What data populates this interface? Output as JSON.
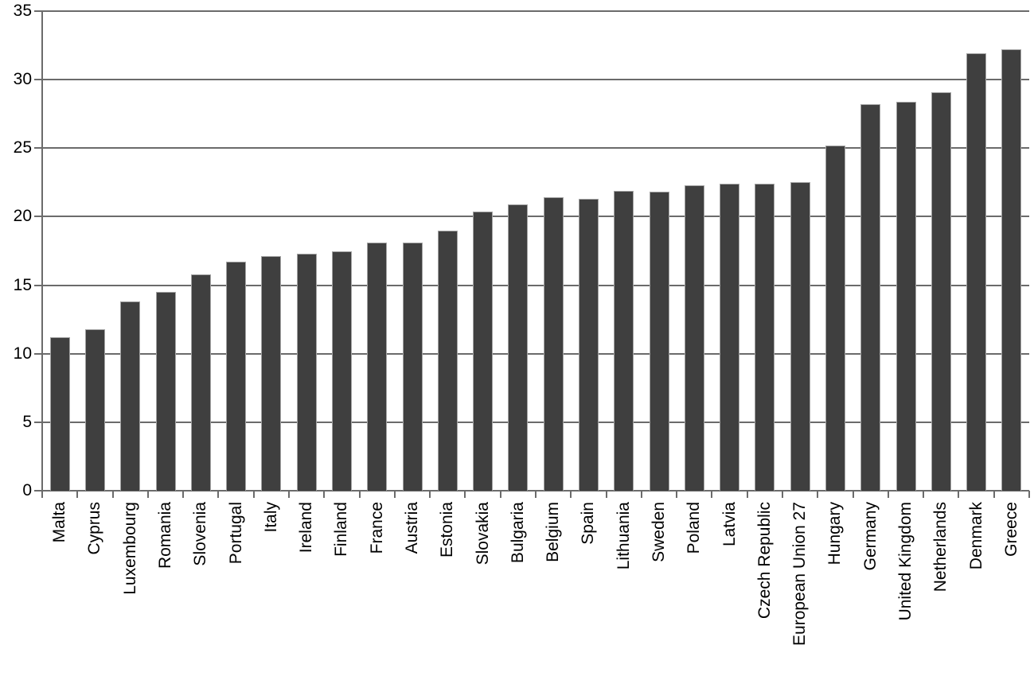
{
  "chart_data": {
    "type": "bar",
    "title": "",
    "xlabel": "",
    "ylabel": "",
    "categories": [
      "Malta",
      "Cyprus",
      "Luxembourg",
      "Romania",
      "Slovenia",
      "Portugal",
      "Italy",
      "Ireland",
      "Finland",
      "France",
      "Austria",
      "Estonia",
      "Slovakia",
      "Bulgaria",
      "Belgium",
      "Spain",
      "Lithuania",
      "Sweden",
      "Poland",
      "Latvia",
      "Czech Republic",
      "European Union 27",
      "Hungary",
      "Germany",
      "United Kingdom",
      "Netherlands",
      "Denmark",
      "Greece"
    ],
    "values": [
      11.2,
      11.8,
      13.8,
      14.5,
      15.8,
      16.7,
      17.1,
      17.3,
      17.5,
      18.1,
      18.1,
      19.0,
      20.4,
      20.9,
      21.4,
      21.3,
      21.9,
      21.8,
      22.3,
      22.4,
      22.4,
      22.5,
      25.2,
      28.2,
      28.4,
      29.1,
      31.9,
      32.2
    ],
    "ylim": [
      0,
      35
    ],
    "yticks": [
      0,
      5,
      10,
      15,
      20,
      25,
      30,
      35
    ],
    "grid": "horizontal",
    "legend": "none",
    "colors": {
      "bar_fill": "#3f3f3f",
      "bar_border": "#a3a3a3",
      "lines": "#6b6b6b",
      "text": "#000000"
    }
  }
}
